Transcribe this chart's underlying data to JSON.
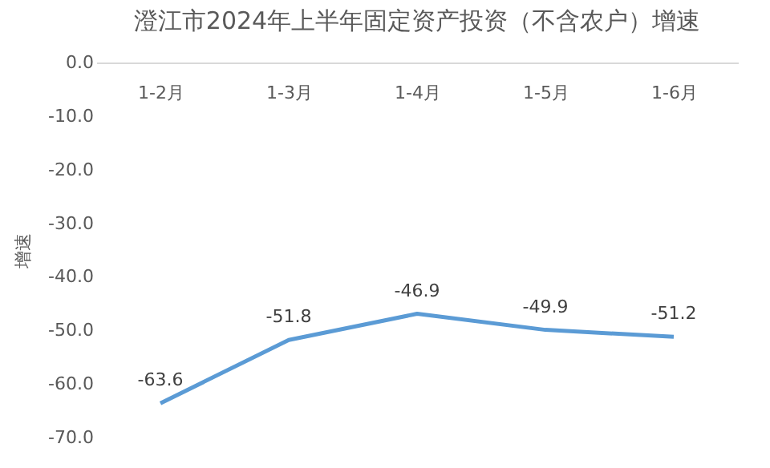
{
  "chart_data": {
    "type": "line",
    "title": "澄江市2024年上半年固定资产投资（不含农户）增速",
    "ylabel": "增速",
    "categories": [
      "1-2月",
      "1-3月",
      "1-4月",
      "1-5月",
      "1-6月"
    ],
    "series": [
      {
        "color": "#5b9bd5",
        "values": [
          -63.6,
          -51.8,
          -46.9,
          -49.9,
          -51.2
        ]
      }
    ],
    "ylim": [
      -70,
      0
    ],
    "yticks": [
      {
        "value": 0,
        "label": "0.0"
      },
      {
        "value": -10,
        "label": "-10.0"
      },
      {
        "value": -20,
        "label": "-20.0"
      },
      {
        "value": -30,
        "label": "-30.0"
      },
      {
        "value": -40,
        "label": "-40.0"
      },
      {
        "value": -50,
        "label": "-50.0"
      },
      {
        "value": -60,
        "label": "-60.0"
      },
      {
        "value": -70,
        "label": "-70.0"
      }
    ],
    "grid": false,
    "legend": false,
    "marker": "none",
    "line_style": "solid",
    "data_labels": true
  }
}
